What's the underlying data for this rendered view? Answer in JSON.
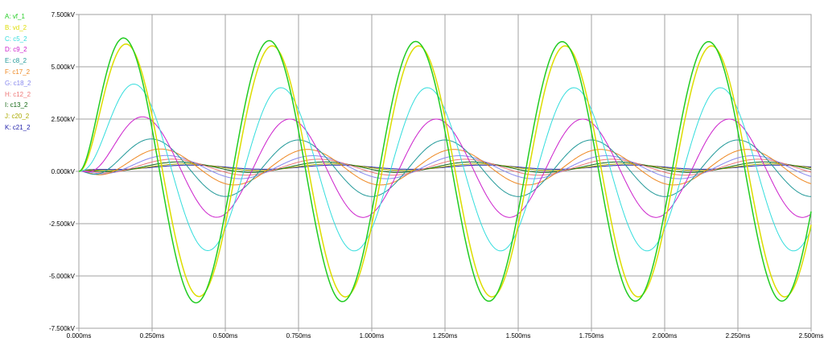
{
  "chart_data": {
    "type": "line",
    "xlabel": "",
    "ylabel": "",
    "x_unit": "ms",
    "y_unit": "kV",
    "xlim": [
      0,
      2.5
    ],
    "ylim": [
      -7.5,
      7.5
    ],
    "grid": true,
    "legend_position": "left",
    "x_ticks": [
      "0.000ms",
      "0.250ms",
      "0.500ms",
      "0.750ms",
      "1.000ms",
      "1.250ms",
      "1.500ms",
      "1.750ms",
      "2.000ms",
      "2.250ms",
      "2.500ms"
    ],
    "y_ticks": [
      "7.500kV",
      "5.000kV",
      "2.500kV",
      "0.000kV",
      "-2.500kV",
      "-5.000kV",
      "-7.500kV"
    ],
    "series": [
      {
        "name": "A: vf_1",
        "color": "#22cc22",
        "amplitude_kV": 6.2,
        "first_peak_ms": 0.15,
        "offset_kV": 0.0
      },
      {
        "name": "B: vd_2",
        "color": "#dddd00",
        "amplitude_kV": 6.0,
        "first_peak_ms": 0.16,
        "offset_kV": 0.0
      },
      {
        "name": "C: c5_2",
        "color": "#33dddd",
        "amplitude_kV": 3.9,
        "first_peak_ms": 0.19,
        "offset_kV": 0.1
      },
      {
        "name": "D: c9_2",
        "color": "#cc22cc",
        "amplitude_kV": 2.35,
        "first_peak_ms": 0.22,
        "offset_kV": 0.15
      },
      {
        "name": "E: c8_2",
        "color": "#229999",
        "amplitude_kV": 1.35,
        "first_peak_ms": 0.25,
        "offset_kV": 0.15
      },
      {
        "name": "F: c17_2",
        "color": "#ee8822",
        "amplitude_kV": 0.85,
        "first_peak_ms": 0.28,
        "offset_kV": 0.2
      },
      {
        "name": "G: c18_2",
        "color": "#8888ee",
        "amplitude_kV": 0.55,
        "first_peak_ms": 0.3,
        "offset_kV": 0.2
      },
      {
        "name": "H: c12_2",
        "color": "#ee7777",
        "amplitude_kV": 0.38,
        "first_peak_ms": 0.32,
        "offset_kV": 0.2
      },
      {
        "name": "I: c13_2",
        "color": "#116611",
        "amplitude_kV": 0.25,
        "first_peak_ms": 0.34,
        "offset_kV": 0.2
      },
      {
        "name": "J: c20_2",
        "color": "#aaaa00",
        "amplitude_kV": 0.16,
        "first_peak_ms": 0.36,
        "offset_kV": 0.2
      },
      {
        "name": "K: c21_2",
        "color": "#2222aa",
        "amplitude_kV": 0.1,
        "first_peak_ms": 0.38,
        "offset_kV": 0.2
      }
    ],
    "period_ms": 0.5
  }
}
